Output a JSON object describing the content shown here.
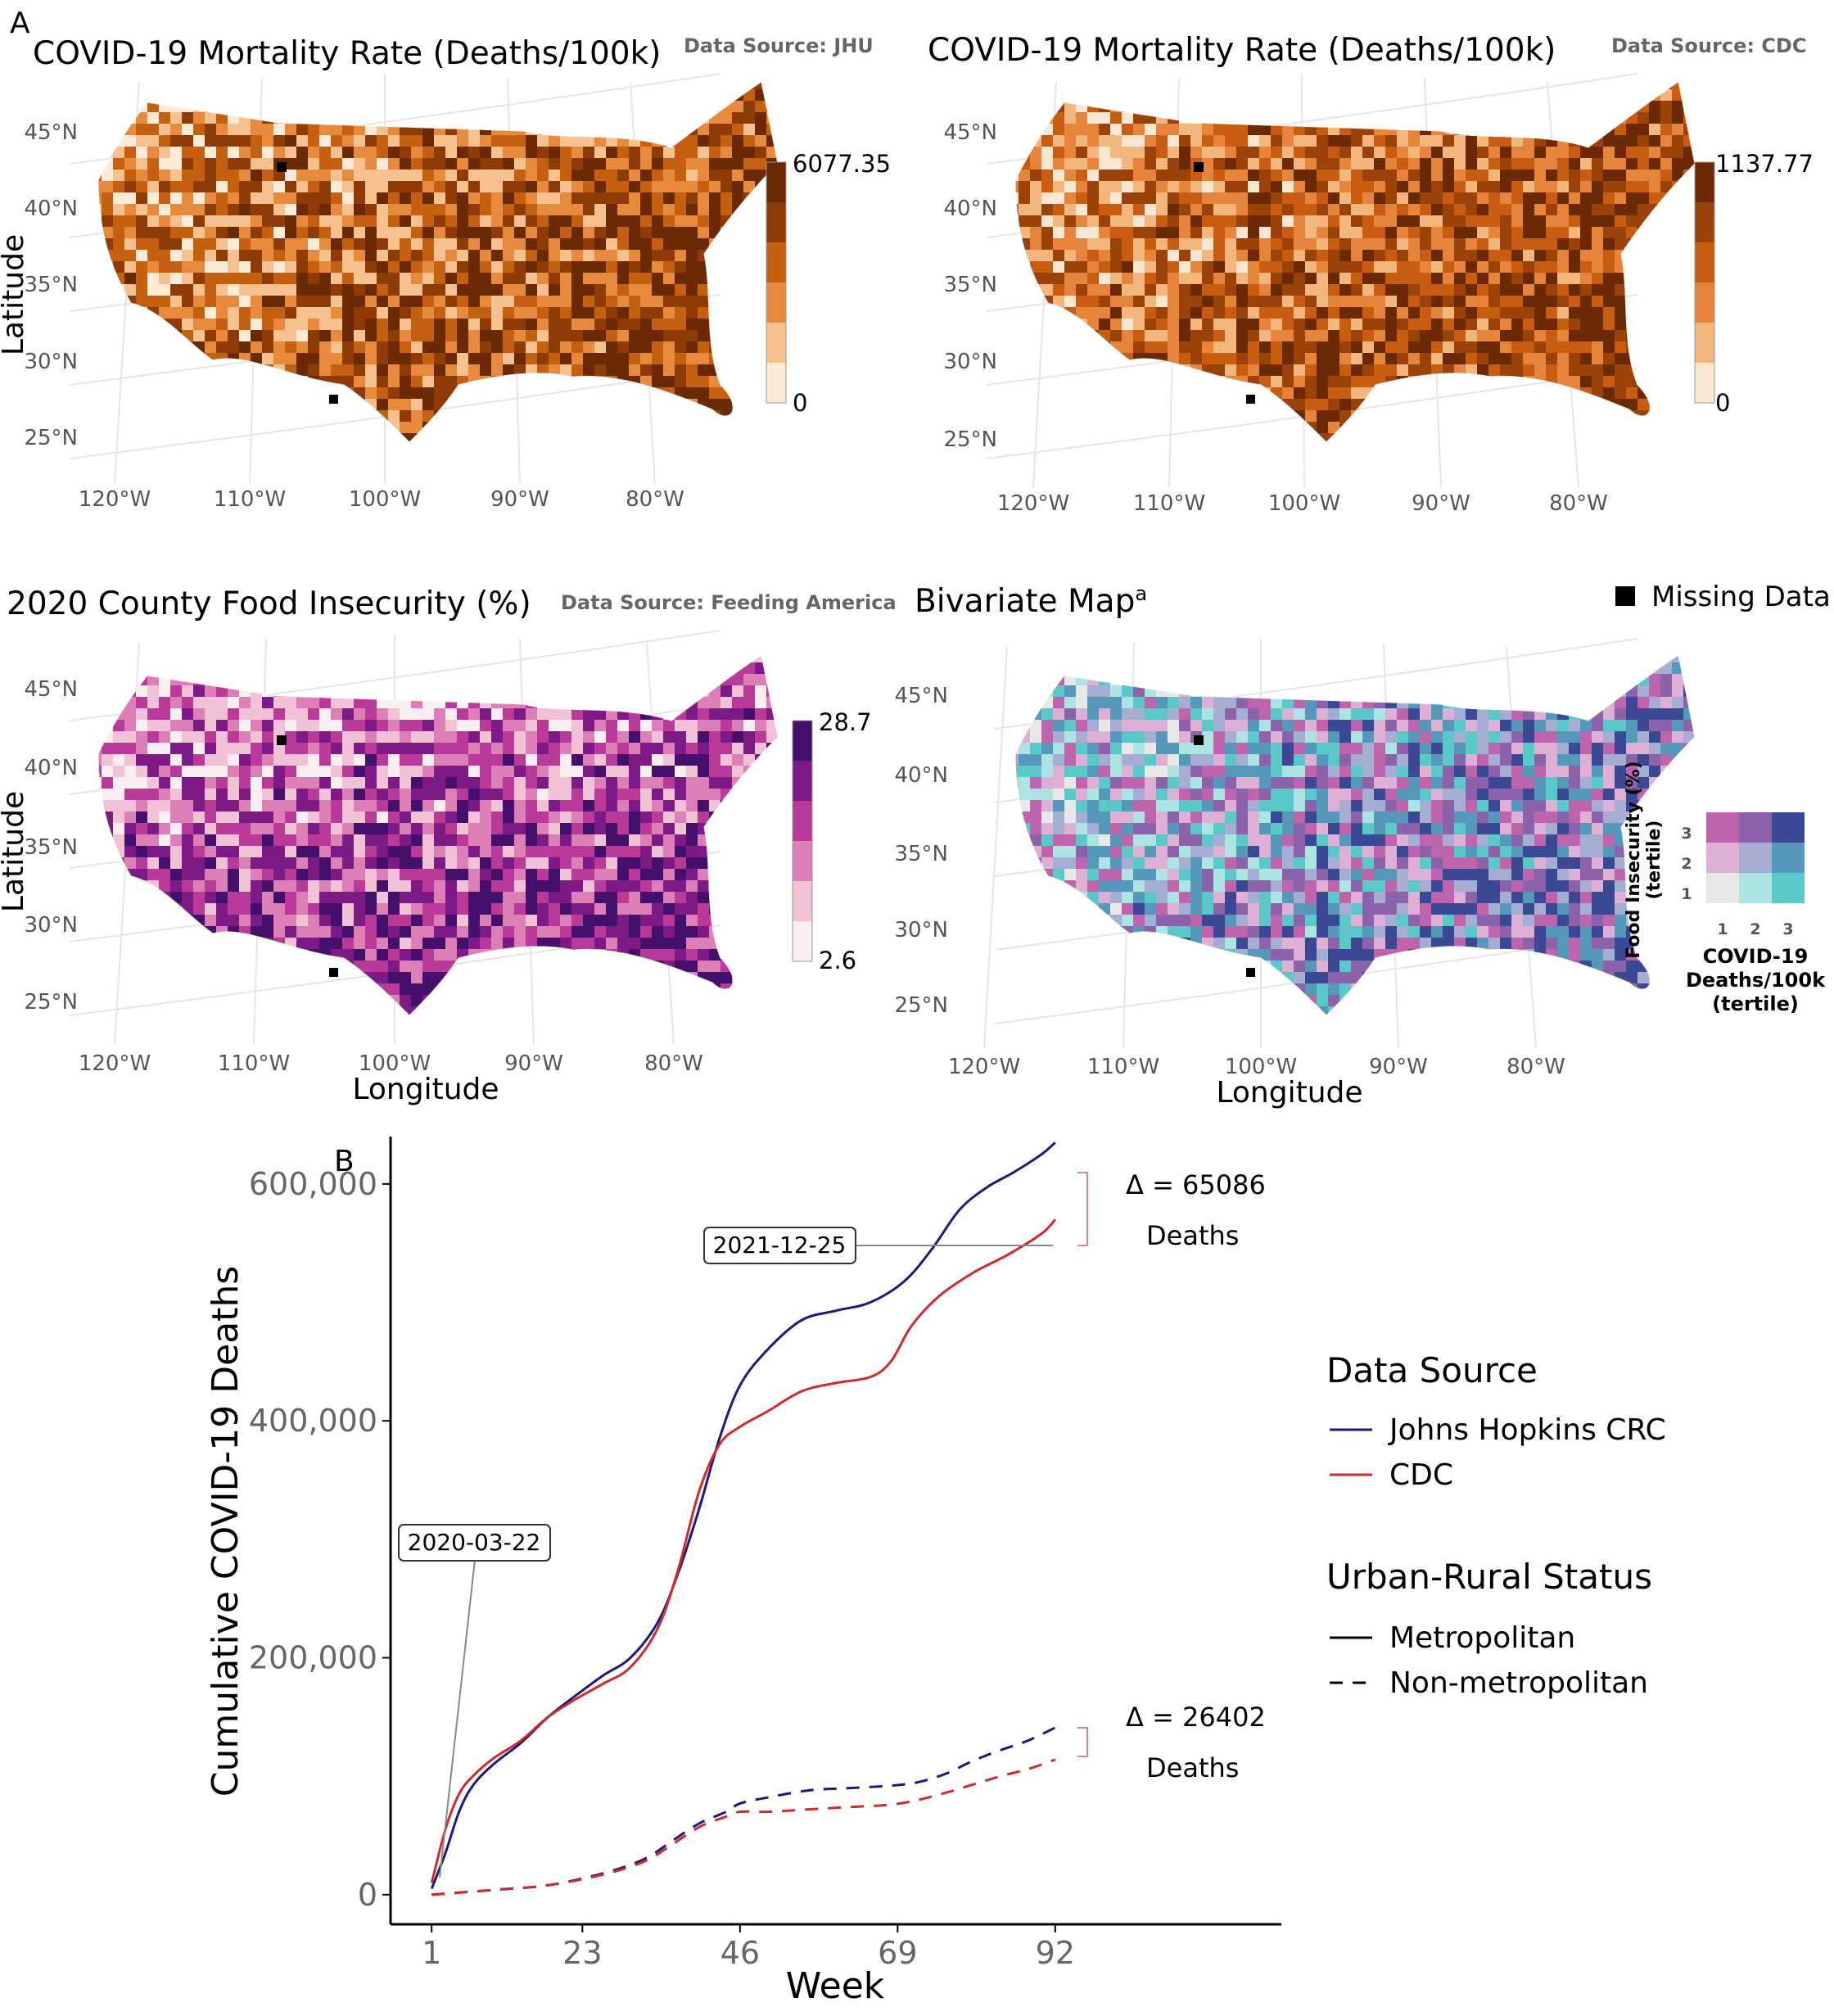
{
  "panel_labels": {
    "a": "A",
    "b": "B"
  },
  "maps": [
    {
      "title": "COVID-19 Mortality Rate (Deaths/100k)",
      "source": "Data Source: JHU",
      "ylabel": "Latitude",
      "xlabel": "",
      "lat_ticks": [
        "45°N",
        "40°N",
        "35°N",
        "30°N",
        "25°N"
      ],
      "lon_ticks": [
        "120°W",
        "110°W",
        "100°W",
        "90°W",
        "80°W"
      ],
      "legend_max": "6077.35",
      "legend_min": "0",
      "palette": [
        "#fdebd8",
        "#f6c08f",
        "#e78a3e",
        "#c4600f",
        "#8e3b06",
        "#6b2a04"
      ]
    },
    {
      "title": "COVID-19 Mortality Rate (Deaths/100k)",
      "source": "Data Source: CDC",
      "ylabel": "",
      "xlabel": "",
      "lat_ticks": [
        "45°N",
        "40°N",
        "35°N",
        "30°N",
        "25°N"
      ],
      "lon_ticks": [
        "120°W",
        "110°W",
        "100°W",
        "90°W",
        "80°W"
      ],
      "legend_max": "1137.77",
      "legend_min": "0",
      "palette": [
        "#fbe6d1",
        "#f3b77e",
        "#e5843a",
        "#c85d12",
        "#9a4208",
        "#6b2a04"
      ]
    },
    {
      "title": "2020 County Food Insecurity (%)",
      "source": "Data Source: Feeding America",
      "ylabel": "Latitude",
      "xlabel": "Longitude",
      "lat_ticks": [
        "45°N",
        "40°N",
        "35°N",
        "30°N",
        "25°N"
      ],
      "lon_ticks": [
        "120°W",
        "110°W",
        "100°W",
        "90°W",
        "80°W"
      ],
      "legend_max": "28.7",
      "legend_min": "2.6",
      "palette": [
        "#fbeef0",
        "#f1c1d6",
        "#db7fb6",
        "#b93a98",
        "#7e1a86",
        "#45106b"
      ]
    },
    {
      "title": "Bivariate Map",
      "title_sup": "a",
      "source": "",
      "ylabel": "",
      "xlabel": "Longitude",
      "lat_ticks": [
        "45°N",
        "40°N",
        "35°N",
        "30°N",
        "25°N"
      ],
      "lon_ticks": [
        "120°W",
        "110°W",
        "100°W",
        "90°W",
        "80°W"
      ],
      "palette": [
        "#e8e8e8",
        "#ace4e4",
        "#5ac8c8",
        "#dfb0d6",
        "#a5add3",
        "#5698b9",
        "#be64ac",
        "#8c62aa",
        "#3b4994"
      ]
    }
  ],
  "missing_data_label": "Missing Data",
  "bivariate_legend": {
    "y_title": "Food Insecurity (%)",
    "y_sub": "(tertile)",
    "x_title_lines": [
      "COVID-19",
      "Deaths/100k",
      "(tertile)"
    ],
    "row_labels": [
      "3",
      "2",
      "1"
    ],
    "col_labels": [
      "1",
      "2",
      "3"
    ],
    "grid_colors": [
      [
        "#be64ac",
        "#8c62aa",
        "#3b4994"
      ],
      [
        "#dfb0d6",
        "#a5add3",
        "#5698b9"
      ],
      [
        "#e8e8e8",
        "#ace4e4",
        "#5ac8c8"
      ]
    ]
  },
  "chart_data": {
    "type": "line",
    "xlabel": "Week",
    "ylabel": "Cumulative COVID-19 Deaths",
    "x_ticks": [
      1,
      23,
      46,
      69,
      92
    ],
    "y_ticks": [
      0,
      200000,
      400000,
      600000
    ],
    "y_tick_labels": [
      "0",
      "200,000",
      "400,000",
      "600,000"
    ],
    "xlim": [
      -5,
      125
    ],
    "ylim": [
      -25000,
      640000
    ],
    "grid": false,
    "series": [
      {
        "source": "Johns Hopkins CRC",
        "status": "Metropolitan",
        "color": "#1a1a80",
        "dash": "solid",
        "x": [
          1,
          3,
          5,
          7,
          10,
          14,
          18,
          22,
          26,
          30,
          34,
          37,
          40,
          43,
          46,
          50,
          55,
          60,
          65,
          70,
          74,
          78,
          82,
          86,
          90,
          92
        ],
        "y": [
          5000,
          35000,
          70000,
          92000,
          110000,
          128000,
          150000,
          168000,
          185000,
          200000,
          230000,
          272000,
          325000,
          385000,
          430000,
          460000,
          485000,
          493000,
          500000,
          518000,
          545000,
          578000,
          597000,
          610000,
          625000,
          635000
        ]
      },
      {
        "source": "CDC",
        "status": "Metropolitan",
        "color": "#d12a2a",
        "dash": "solid",
        "x": [
          1,
          3,
          5,
          7,
          10,
          14,
          18,
          22,
          26,
          30,
          34,
          37,
          40,
          43,
          46,
          50,
          55,
          60,
          65,
          68,
          71,
          75,
          80,
          85,
          90,
          92
        ],
        "y": [
          10000,
          55000,
          85000,
          100000,
          115000,
          130000,
          150000,
          165000,
          178000,
          192000,
          225000,
          275000,
          340000,
          380000,
          395000,
          408000,
          425000,
          432000,
          437000,
          450000,
          480000,
          505000,
          525000,
          540000,
          558000,
          570000
        ]
      },
      {
        "source": "Johns Hopkins CRC",
        "status": "Non-metropolitan",
        "color": "#1a1a80",
        "dash": "dashed",
        "x": [
          1,
          10,
          18,
          26,
          32,
          36,
          40,
          44,
          46,
          50,
          56,
          62,
          68,
          72,
          76,
          80,
          84,
          88,
          92
        ],
        "y": [
          0,
          4000,
          8000,
          18000,
          30000,
          45000,
          60000,
          70000,
          77000,
          82000,
          88000,
          90000,
          92000,
          95000,
          102000,
          113000,
          122000,
          130000,
          141000
        ]
      },
      {
        "source": "CDC",
        "status": "Non-metropolitan",
        "color": "#d12a2a",
        "dash": "dashed",
        "x": [
          1,
          10,
          18,
          26,
          32,
          36,
          40,
          44,
          46,
          50,
          56,
          62,
          68,
          72,
          76,
          80,
          84,
          88,
          92
        ],
        "y": [
          0,
          4000,
          8000,
          17000,
          28000,
          42000,
          57000,
          66000,
          70000,
          70000,
          72000,
          74000,
          76000,
          80000,
          86000,
          93000,
          100000,
          106000,
          114000
        ]
      }
    ],
    "annotations": [
      {
        "text": "2020-03-22",
        "x": 1
      },
      {
        "text": "2021-12-25",
        "x": 92
      },
      {
        "label": "Δ = 65086",
        "sublabel": "Deaths",
        "x": 92
      },
      {
        "label": "Δ = 26402",
        "sublabel": "Deaths",
        "x": 92
      }
    ],
    "legend": {
      "color_title": "Data Source",
      "color_items": [
        {
          "label": "Johns Hopkins CRC",
          "color": "#1a1a80"
        },
        {
          "label": "CDC",
          "color": "#d12a2a"
        }
      ],
      "linetype_title": "Urban-Rural Status",
      "linetype_items": [
        {
          "label": "Metropolitan",
          "dash": "solid"
        },
        {
          "label": "Non-metropolitan",
          "dash": "dashed"
        }
      ],
      "position": "right"
    }
  }
}
